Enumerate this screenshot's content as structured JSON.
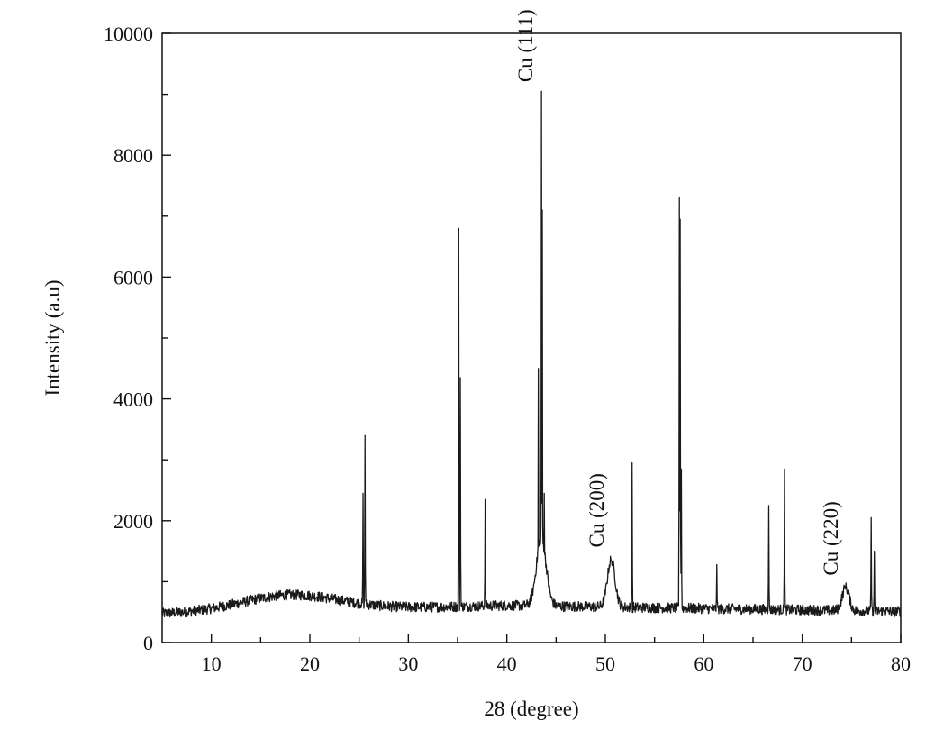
{
  "chart_data": {
    "type": "line",
    "title": "",
    "xlabel": "28 (degree)",
    "ylabel": "Intensity (a.u)",
    "xlim": [
      5,
      80
    ],
    "ylim": [
      0,
      10000
    ],
    "x_ticks": [
      10,
      20,
      30,
      40,
      50,
      60,
      70,
      80
    ],
    "y_ticks": [
      0,
      2000,
      4000,
      6000,
      8000,
      10000
    ],
    "x_tick_labels": [
      "10",
      "20",
      "30",
      "40",
      "50",
      "60",
      "70",
      "80"
    ],
    "y_tick_labels": [
      "0",
      "2000",
      "4000",
      "6000",
      "8000",
      "10000"
    ],
    "grid": false,
    "legend": "none",
    "line_color": "#1a1a1a",
    "series": [
      {
        "peaks": [
          {
            "x": 25.4,
            "y": 2450
          },
          {
            "x": 25.6,
            "y": 3400
          },
          {
            "x": 35.1,
            "y": 6800
          },
          {
            "x": 35.3,
            "y": 4350
          },
          {
            "x": 37.8,
            "y": 2350
          },
          {
            "x": 43.2,
            "y": 4500
          },
          {
            "x": 43.5,
            "y": 9050
          },
          {
            "x": 43.6,
            "y": 7100
          },
          {
            "x": 43.8,
            "y": 2450
          },
          {
            "x": 50.6,
            "y": 1350
          },
          {
            "x": 52.7,
            "y": 2950
          },
          {
            "x": 57.5,
            "y": 7300
          },
          {
            "x": 57.6,
            "y": 6950
          },
          {
            "x": 57.7,
            "y": 2850
          },
          {
            "x": 61.3,
            "y": 1280
          },
          {
            "x": 66.6,
            "y": 2250
          },
          {
            "x": 68.2,
            "y": 2850
          },
          {
            "x": 74.4,
            "y": 880
          },
          {
            "x": 77.0,
            "y": 2050
          },
          {
            "x": 77.3,
            "y": 1500
          }
        ]
      }
    ],
    "annotations": [
      {
        "text": "Cu (111)",
        "x": 42.6,
        "y": 9200
      },
      {
        "text": "Cu (200)",
        "x": 49.8,
        "y": 1560
      },
      {
        "text": "Cu (220)",
        "x": 73.6,
        "y": 1100
      }
    ]
  }
}
